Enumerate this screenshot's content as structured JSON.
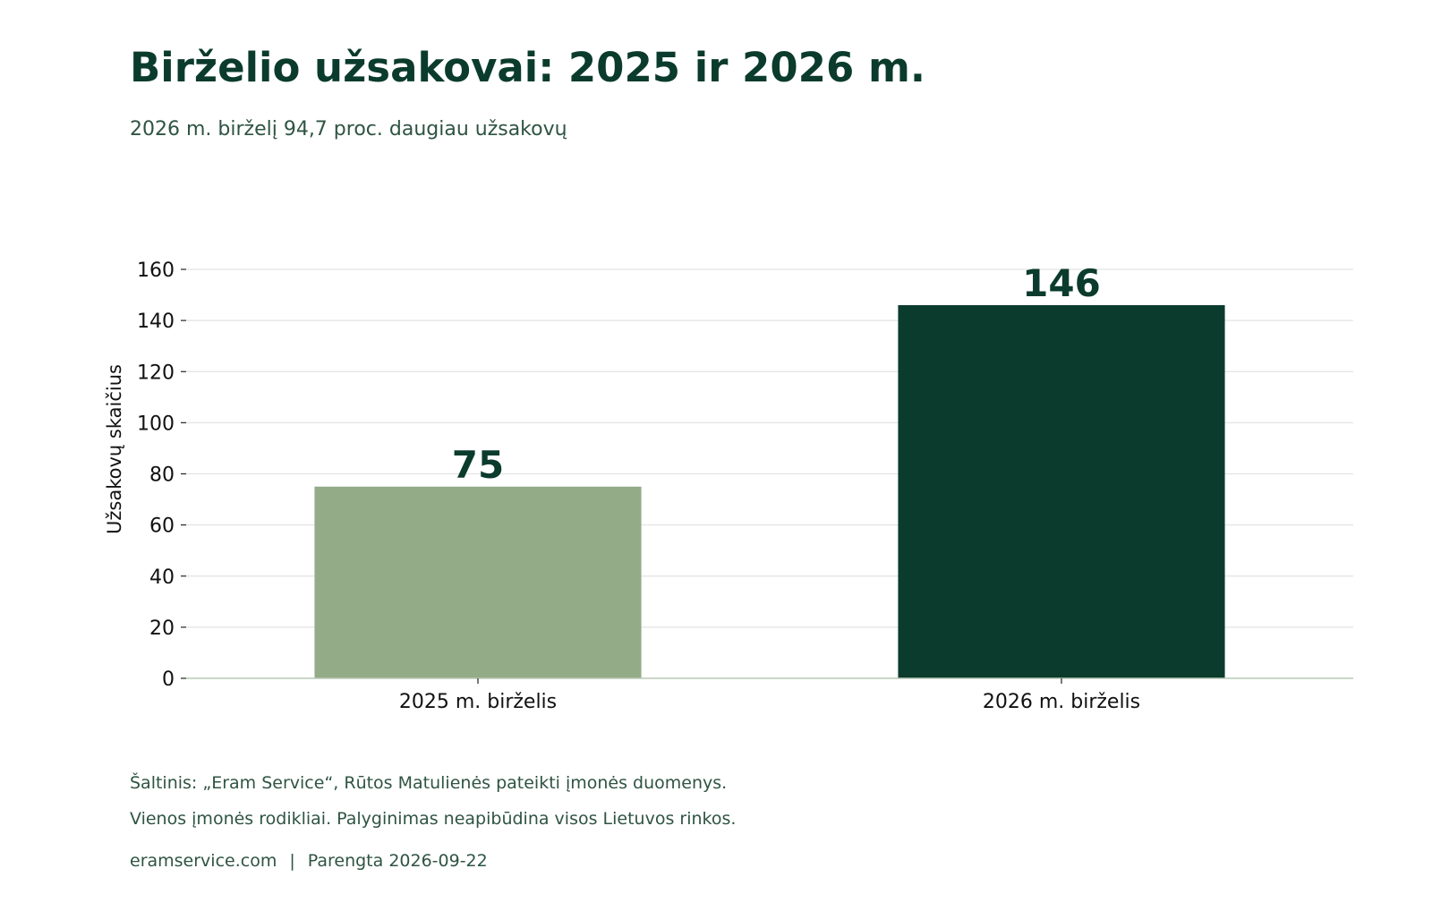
{
  "header": {
    "title": "Birželio užsakovai: 2025 ir 2026 m.",
    "subtitle": "2026 m. birželį 94,7 proc. daugiau užsakovų"
  },
  "chart_data": {
    "type": "bar",
    "categories": [
      "2025 m. birželis",
      "2026 m. birželis"
    ],
    "values": [
      75,
      146
    ],
    "data_labels": [
      "75",
      "146"
    ],
    "ylabel": "Užsakovų skaičius",
    "xlabel": "",
    "ylim": [
      0,
      160
    ],
    "yticks": [
      0,
      20,
      40,
      60,
      80,
      100,
      120,
      140,
      160
    ],
    "grid": true,
    "legend": "none",
    "colors": [
      "#93ab87",
      "#0b3b2c"
    ],
    "label_color": "#0b3b2c",
    "axis_color": "#b9c9b6",
    "grid_color": "#e3e3e3"
  },
  "footer": {
    "source": "Šaltinis: „Eram Service“, Rūtos Matulienės pateikti įmonės duomenys.",
    "note": "Vienos įmonės rodikliai. Palyginimas neapibūdina visos Lietuvos rinkos.",
    "site": "eramservice.com",
    "separator": "|",
    "prepared": "Parengta 2026-09-22"
  }
}
